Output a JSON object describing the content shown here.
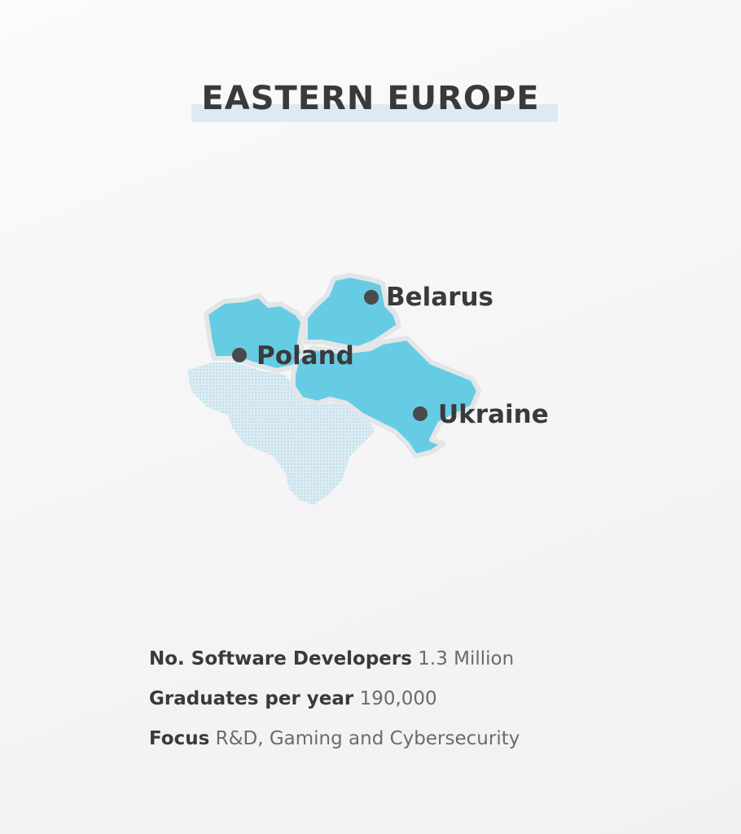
{
  "title": "EASTERN EUROPE",
  "colors": {
    "country_fill": "#66cce4",
    "neighbor_fill": "#d6e8f0",
    "text": "#3a3a3c",
    "marker": "#4a4a4c",
    "title_band": "#dcebf3"
  },
  "map": {
    "countries": [
      {
        "name": "Poland"
      },
      {
        "name": "Belarus"
      },
      {
        "name": "Ukraine"
      }
    ]
  },
  "stats": [
    {
      "label": "No. Software Developers",
      "value": "1.3 Million"
    },
    {
      "label": "Graduates per year",
      "value": "190,000"
    },
    {
      "label": "Focus",
      "value": "R&D, Gaming and Cybersecurity"
    }
  ]
}
